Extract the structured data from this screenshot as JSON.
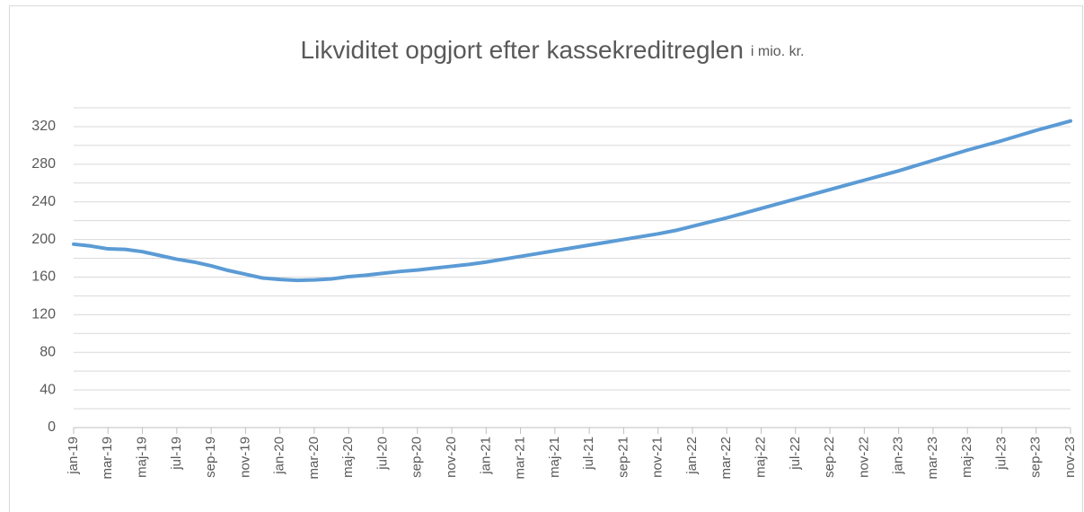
{
  "chart_data": {
    "type": "line",
    "title": "Likviditet opgjort efter kassekreditreglen",
    "subtitle": "i mio. kr.",
    "categories": [
      "jan-19",
      null,
      "mar-19",
      null,
      "maj-19",
      null,
      "jul-19",
      null,
      "sep-19",
      null,
      "nov-19",
      null,
      "jan-20",
      null,
      "mar-20",
      null,
      "maj-20",
      null,
      "jul-20",
      null,
      "sep-20",
      null,
      "nov-20",
      null,
      "jan-21",
      null,
      "mar-21",
      null,
      "maj-21",
      null,
      "jul-21",
      null,
      "sep-21",
      null,
      "nov-21",
      null,
      "jan-22",
      null,
      "mar-22",
      null,
      "maj-22",
      null,
      "jul-22",
      null,
      "sep-22",
      null,
      "nov-22",
      null,
      "jan-23",
      null,
      "mar-23",
      null,
      "maj-23",
      null,
      "jul-23",
      null,
      "sep-23",
      null,
      "nov-23"
    ],
    "series": [
      {
        "name": "Likviditet",
        "color": "#5b9bd5",
        "values": [
          195,
          193,
          190,
          189.5,
          187,
          183,
          179,
          176,
          172,
          167,
          163,
          159,
          157.5,
          156.5,
          157,
          158,
          160.5,
          162,
          164,
          166,
          167.5,
          169.5,
          171.5,
          173.5,
          176,
          179,
          182,
          185,
          188,
          191,
          194,
          197,
          200,
          203,
          206,
          209.5,
          214,
          218.5,
          223,
          228,
          233,
          238,
          243,
          248,
          253,
          258,
          263,
          268,
          273,
          278.5,
          284,
          289.5,
          295,
          300,
          305,
          310.5,
          316,
          321,
          326
        ]
      }
    ],
    "ylim": [
      0,
      340
    ],
    "yticks": [
      0,
      40,
      80,
      120,
      160,
      200,
      240,
      280,
      320
    ],
    "minor_yticks": [
      20,
      60,
      100,
      140,
      180,
      220,
      260,
      300,
      340
    ],
    "grid": true
  }
}
